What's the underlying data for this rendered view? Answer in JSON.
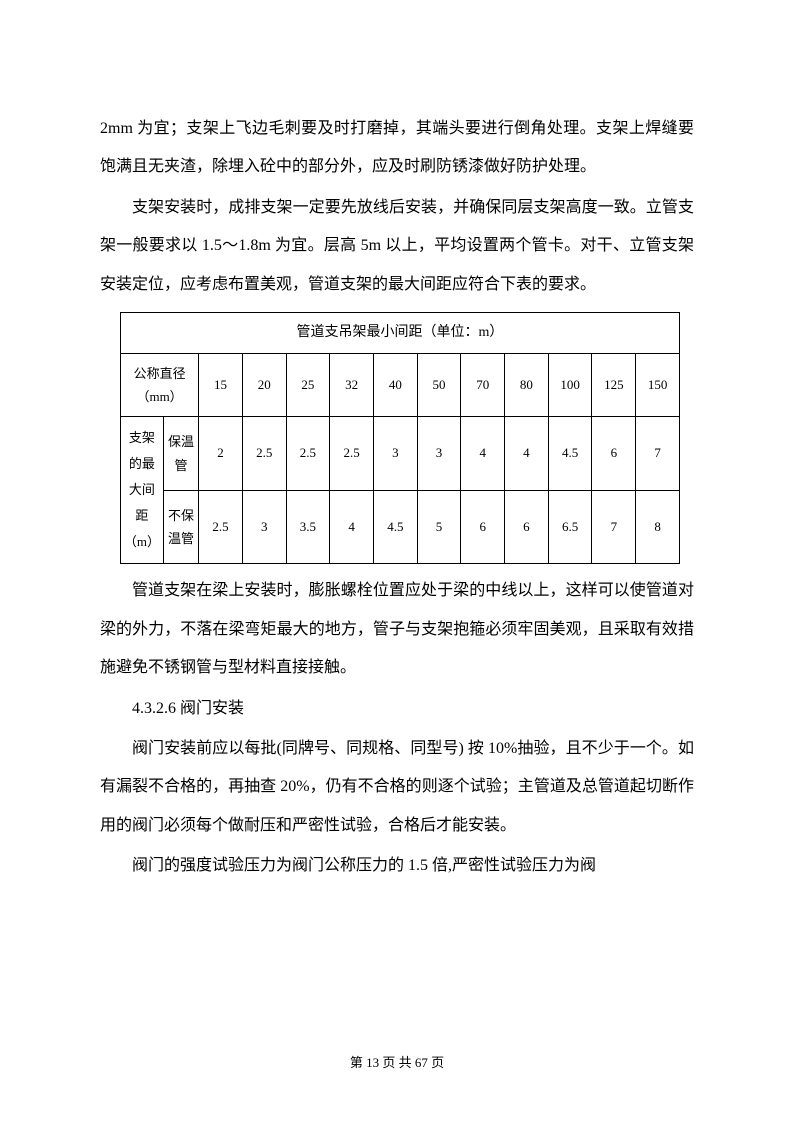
{
  "paragraphs": {
    "p1": "2mm 为宜；支架上飞边毛刺要及时打磨掉，其端头要进行倒角处理。支架上焊缝要饱满且无夹渣，除埋入砼中的部分外，应及时刷防锈漆做好防护处理。",
    "p2": "支架安装时，成排支架一定要先放线后安装，并确保同层支架高度一致。立管支架一般要求以 1.5～1.8m 为宜。层高 5m 以上，平均设置两个管卡。对干、立管支架安装定位，应考虑布置美观，管道支架的最大间距应符合下表的要求。",
    "p3": "管道支架在梁上安装时，膨胀螺栓位置应处于梁的中线以上，这样可以使管道对梁的外力，不落在梁弯矩最大的地方，管子与支架抱箍必须牢固美观，且采取有效措施避免不锈钢管与型材料直接接触。",
    "p4": "4.3.2.6 阀门安装",
    "p5": "阀门安装前应以每批(同牌号、同规格、同型号) 按 10%抽验，且不少于一个。如有漏裂不合格的，再抽查 20%，仍有不合格的则逐个试验；主管道及总管道起切断作用的阀门必须每个做耐压和严密性试验，合格后才能安装。",
    "p6": "阀门的强度试验压力为阀门公称压力的 1.5 倍,严密性试验压力为阀"
  },
  "table": {
    "title": "管道支吊架最小间距（单位：m）",
    "header1": "公称直径（mm）",
    "side_label": "支架的最大间距（m）",
    "row1_label": "保温管",
    "row2_label": "不保温管",
    "diameters": [
      "15",
      "20",
      "25",
      "32",
      "40",
      "50",
      "70",
      "80",
      "100",
      "125",
      "150"
    ],
    "row1_values": [
      "2",
      "2.5",
      "2.5",
      "2.5",
      "3",
      "3",
      "4",
      "4",
      "4.5",
      "6",
      "7"
    ],
    "row2_values": [
      "2.5",
      "3",
      "3.5",
      "4",
      "4.5",
      "5",
      "6",
      "6",
      "6.5",
      "7",
      "8"
    ]
  },
  "footer": "第 13 页 共 67 页"
}
